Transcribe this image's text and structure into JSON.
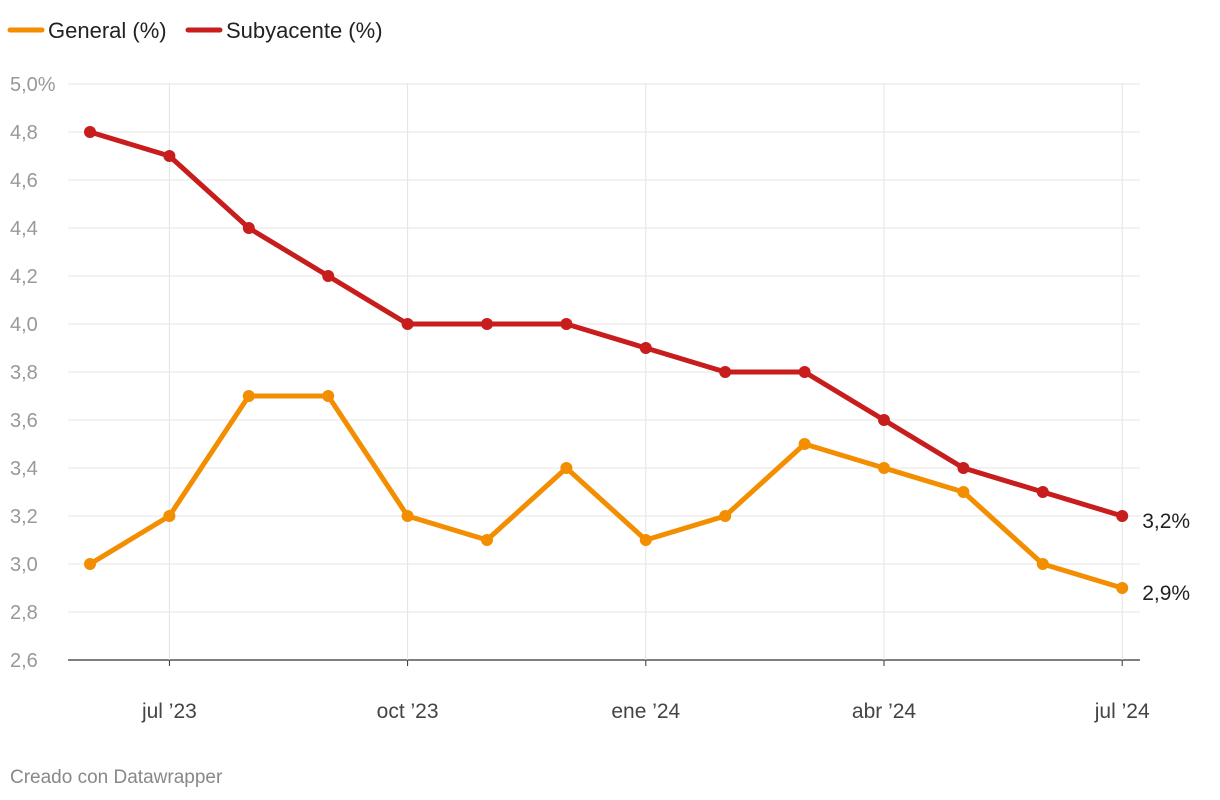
{
  "chart_data": {
    "type": "line",
    "x": [
      "jun '23",
      "jul '23",
      "ago '23",
      "sep '23",
      "oct '23",
      "nov '23",
      "dic '23",
      "ene '24",
      "feb '24",
      "mar '24",
      "abr '24",
      "may '24",
      "jun '24",
      "jul '24"
    ],
    "x_tick_labels": [
      {
        "index": 1,
        "label": "jul ’23"
      },
      {
        "index": 4,
        "label": "oct ’23"
      },
      {
        "index": 7,
        "label": "ene ’24"
      },
      {
        "index": 10,
        "label": "abr ’24"
      },
      {
        "index": 13,
        "label": "jul ’24"
      }
    ],
    "series": [
      {
        "name": "General (%)",
        "color": "#f28e00",
        "values": [
          3.0,
          3.2,
          3.7,
          3.7,
          3.2,
          3.1,
          3.4,
          3.1,
          3.2,
          3.5,
          3.4,
          3.3,
          3.0,
          2.9
        ],
        "end_label": "2,9%"
      },
      {
        "name": "Subyacente (%)",
        "color": "#c71e1d",
        "values": [
          4.8,
          4.7,
          4.4,
          4.2,
          4.0,
          4.0,
          4.0,
          3.9,
          3.8,
          3.8,
          3.6,
          3.4,
          3.3,
          3.2
        ],
        "end_label": "3,2%"
      }
    ],
    "ylim": [
      2.6,
      5.0
    ],
    "y_ticks": [
      {
        "value": 5.0,
        "label": "5,0%"
      },
      {
        "value": 4.8,
        "label": "4,8"
      },
      {
        "value": 4.6,
        "label": "4,6"
      },
      {
        "value": 4.4,
        "label": "4,4"
      },
      {
        "value": 4.2,
        "label": "4,2"
      },
      {
        "value": 4.0,
        "label": "4,0"
      },
      {
        "value": 3.8,
        "label": "3,8"
      },
      {
        "value": 3.6,
        "label": "3,6"
      },
      {
        "value": 3.4,
        "label": "3,4"
      },
      {
        "value": 3.2,
        "label": "3,2"
      },
      {
        "value": 3.0,
        "label": "3,0"
      },
      {
        "value": 2.8,
        "label": "2,8"
      },
      {
        "value": 2.6,
        "label": "2,6"
      }
    ],
    "grid": true,
    "legend_position": "top-left",
    "title": "",
    "xlabel": "",
    "ylabel": ""
  },
  "footer": {
    "credit": "Creado con Datawrapper"
  }
}
